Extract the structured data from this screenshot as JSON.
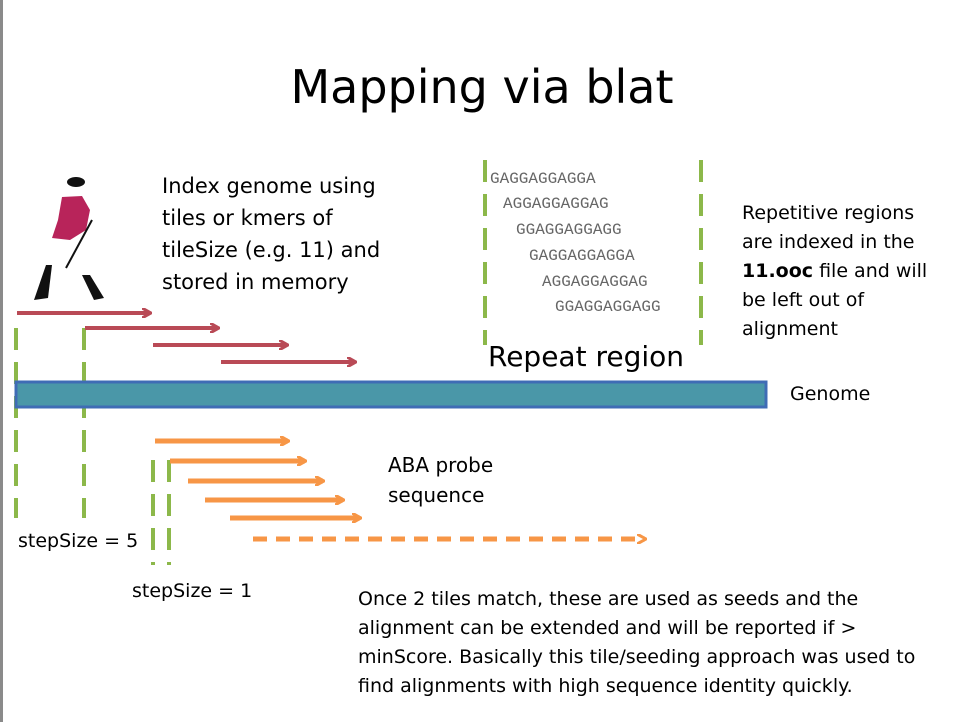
{
  "title": "Mapping via blat",
  "index_text": "Index genome using\ntiles or kmers of\ntileSize (e.g. 11) and\nstored in memory",
  "repetitive_text": {
    "line1": "Repetitive regions\nare indexed in the",
    "bold": "11.ooc",
    "rest": " file and will\nbe left out of\nalignment"
  },
  "repeat_sequences": [
    "GAGGAGGAGGA",
    "AGGAGGAGGAG",
    "GGAGGAGGAGG",
    "GAGGAGGAGGA",
    "AGGAGGAGGAG",
    "GGAGGAGGAGG"
  ],
  "repeat_label": "Repeat region",
  "genome_label": "Genome",
  "aba_label": "ABA probe\nsequence",
  "step5_label": "stepSize = 5",
  "step1_label": "stepSize = 1",
  "once_text": "Once 2 tiles match, these are used as seeds and the\nalignment can be extended and will be reported if >\nminScore. Basically this tile/seeding approach was used to\nfind alignments with high sequence identity quickly.",
  "colors": {
    "tile_arrow": "#b94a56",
    "probe_arrow": "#f79646",
    "genome_fill": "#4a97a8",
    "genome_border": "#3f6cb5",
    "marker": "#8cb84a"
  },
  "icons": [
    "striding-man-logo"
  ]
}
